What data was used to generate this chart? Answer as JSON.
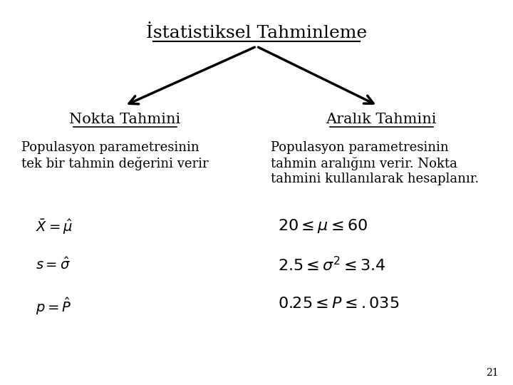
{
  "title": "İstatistiksel Tahminleme",
  "left_heading": "Nokta Tahmini",
  "right_heading": "Aralık Tahmini",
  "left_text_line1": "Populasyon parametresinin",
  "left_text_line2": "tek bir tahmin değerini verir",
  "right_text_line1": "Populasyon parametresinin",
  "right_text_line2": "tahmin aralığını verir. Nokta",
  "right_text_line3": "tahmini kullanılarak hesaplanır.",
  "left_math1": "$\\bar{X} = \\hat{\\mu}$",
  "left_math2": "$s = \\hat{\\sigma}$",
  "left_math3": "$p = \\hat{P}$",
  "right_math1": "$20 \\leq \\mu \\leq 60$",
  "right_math2": "$2.5 \\leq \\sigma^2 \\leq 3.4$",
  "right_math3": "$0.25 \\leq P \\leq .035$",
  "page_number": "21",
  "bg_color": "#ffffff",
  "text_color": "#000000",
  "title_fontsize": 18,
  "heading_fontsize": 15,
  "body_fontsize": 13,
  "math_fontsize": 14
}
